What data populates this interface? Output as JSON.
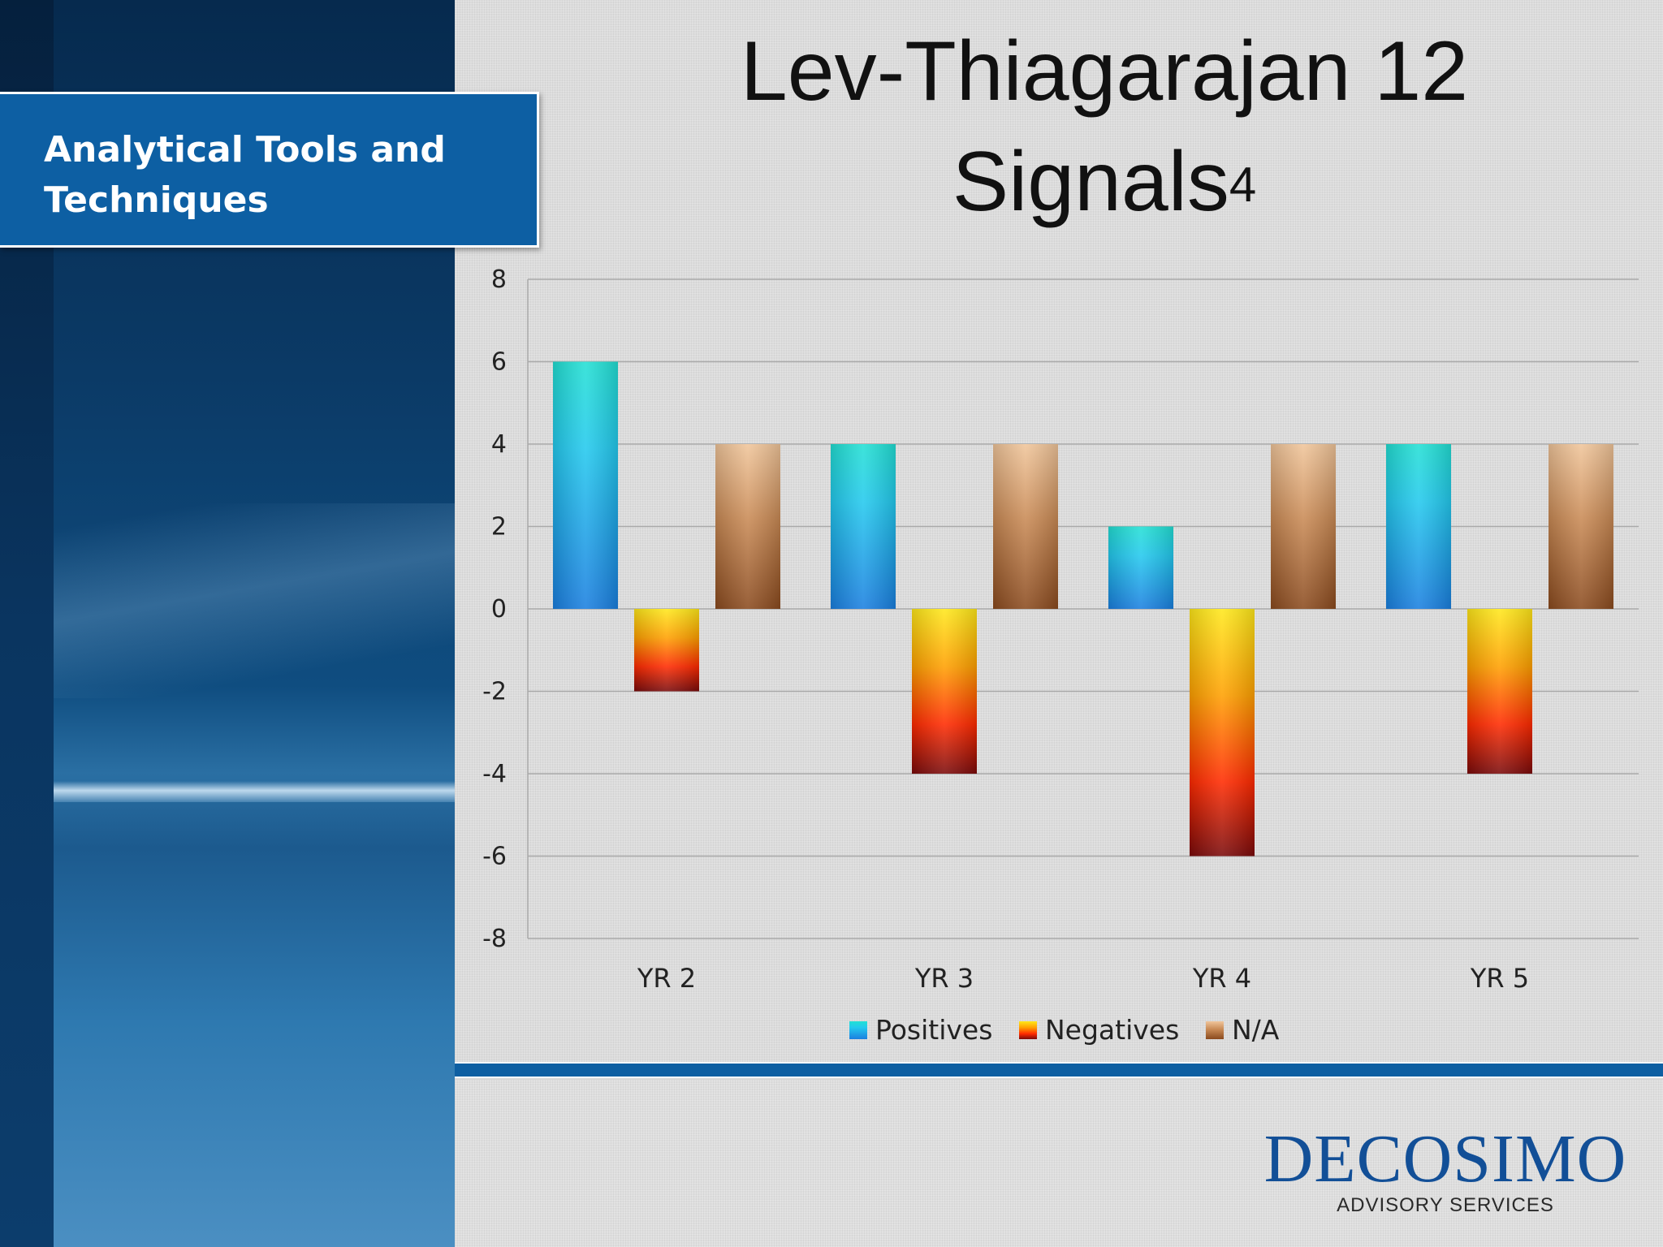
{
  "slide": {
    "section_title": "Analytical Tools and Techniques",
    "title_line1": "Lev-Thiagarajan 12",
    "title_line2": "Signals",
    "title_superscript": "4",
    "logo_name": "DECOSIMO",
    "logo_subtitle": "ADVISORY SERVICES"
  },
  "colors": {
    "banner": "#0d5fa3",
    "positives_top": "#22e0d4",
    "positives_bottom": "#1a7fe0",
    "negatives_top": "#ffe81a",
    "negatives_mid": "#ff2a00",
    "negatives_bottom": "#7a0a0a",
    "na_top": "#f0c59a",
    "na_bottom": "#8a4a1e",
    "logo": "#124f97"
  },
  "chart_data": {
    "type": "bar",
    "categories": [
      "YR 2",
      "YR 3",
      "YR 4",
      "YR 5"
    ],
    "series": [
      {
        "name": "Positives",
        "values": [
          6,
          4,
          2,
          4
        ]
      },
      {
        "name": "Negatives",
        "values": [
          -2,
          -4,
          -6,
          -4
        ]
      },
      {
        "name": "N/A",
        "values": [
          4,
          4,
          4,
          4
        ]
      }
    ],
    "ylim": [
      -8,
      8
    ],
    "yticks": [
      8,
      6,
      4,
      2,
      0,
      -2,
      -4,
      -6,
      -8
    ],
    "grid": true,
    "legend": "bottom"
  }
}
